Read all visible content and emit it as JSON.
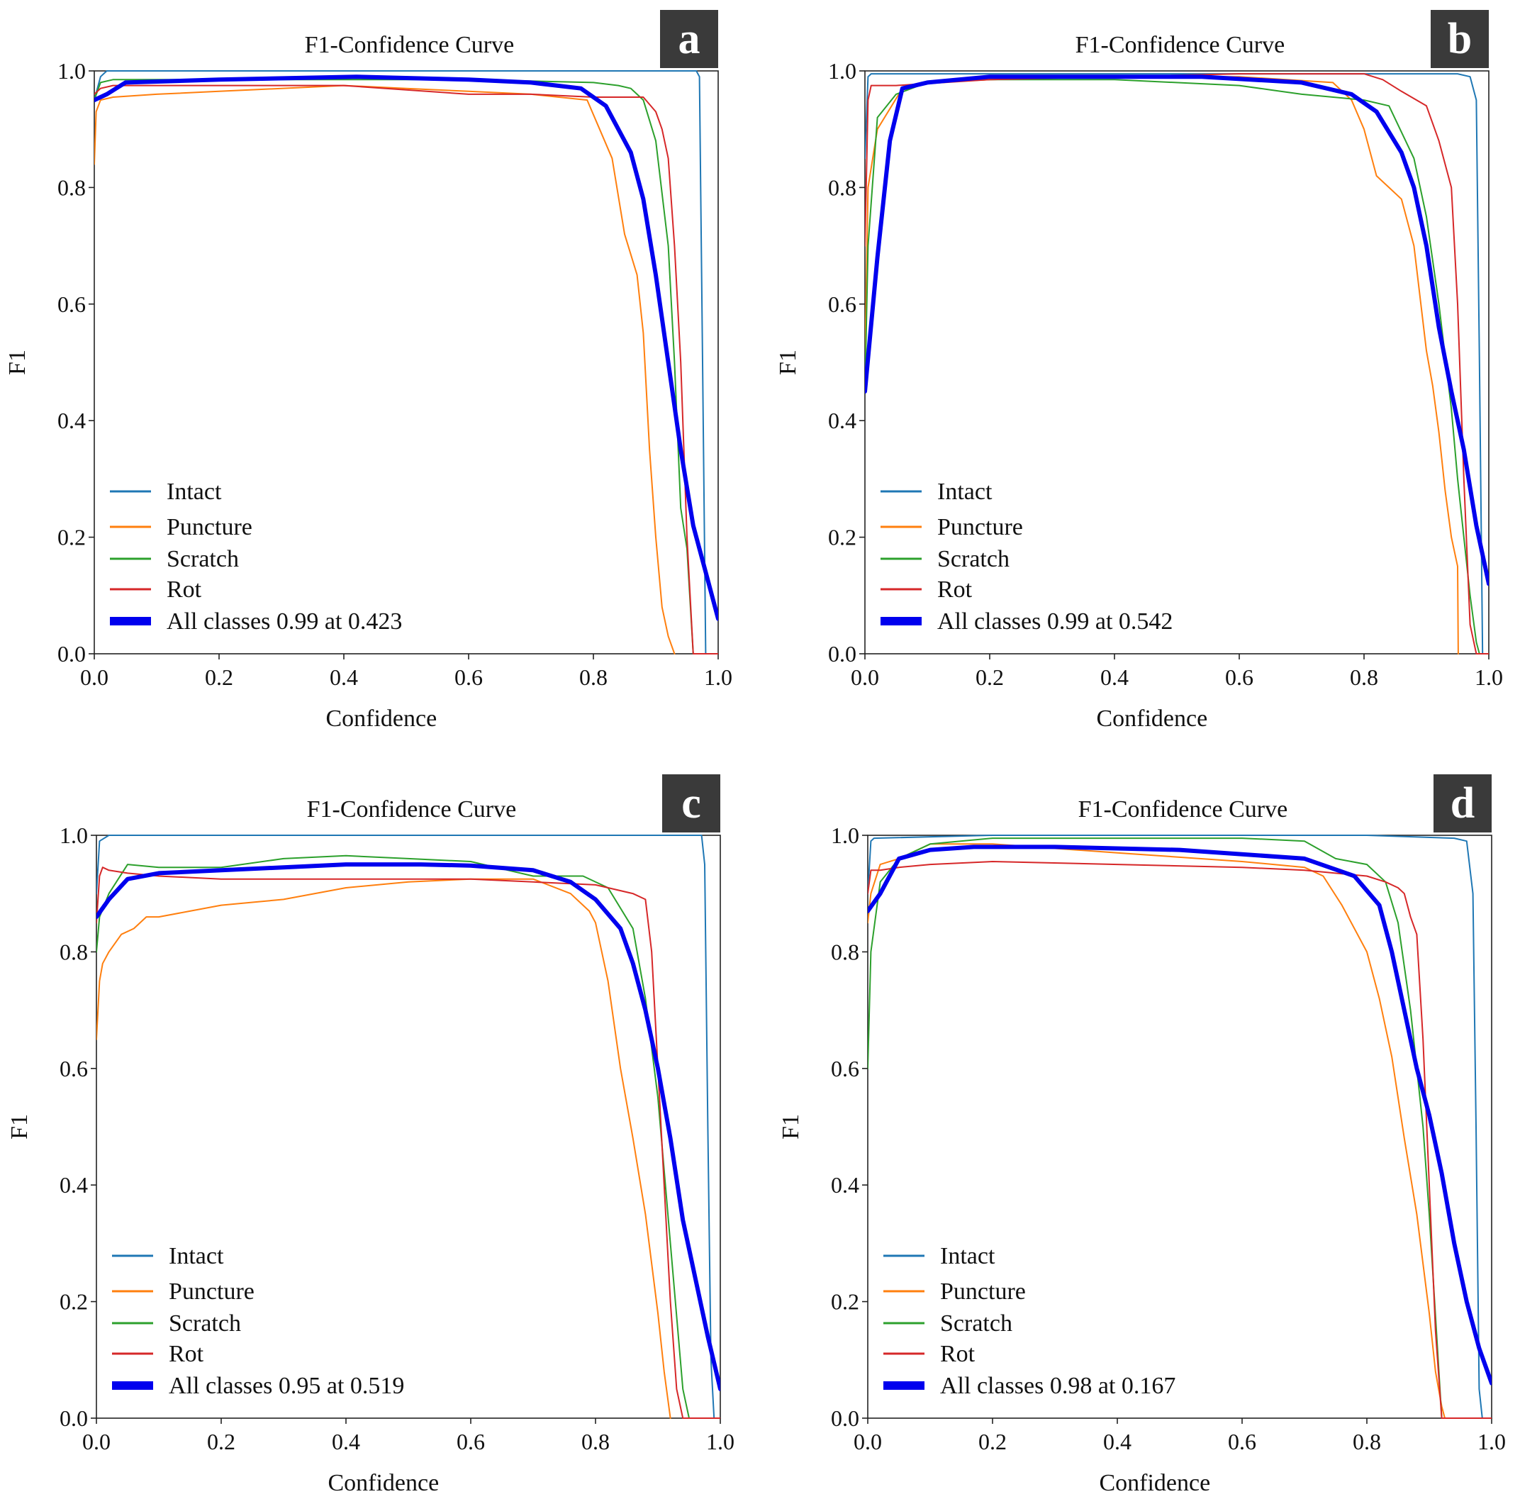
{
  "chart_data": [
    {
      "type": "line",
      "panel_label": "a",
      "title": "F1-Confidence Curve",
      "xlabel": "Confidence",
      "ylabel": "F1",
      "xlim": [
        0,
        1
      ],
      "ylim": [
        0,
        1
      ],
      "xticks": [
        "0.0",
        "0.2",
        "0.4",
        "0.6",
        "0.8",
        "1.0"
      ],
      "yticks": [
        "0.0",
        "0.2",
        "0.4",
        "0.6",
        "0.8",
        "1.0"
      ],
      "grid": false,
      "legend_position": "lower-left",
      "series": [
        {
          "name": "Intact",
          "color": "#1f77b4",
          "width": "thin",
          "x": [
            0,
            0.01,
            0.02,
            0.2,
            0.5,
            0.8,
            0.93,
            0.95,
            0.96,
            0.965,
            0.97,
            0.975,
            0.98,
            1.0
          ],
          "y": [
            0.95,
            0.99,
            1.0,
            1.0,
            1.0,
            1.0,
            1.0,
            1.0,
            1.0,
            1.0,
            0.99,
            0.5,
            0.0,
            0.0
          ]
        },
        {
          "name": "Puncture",
          "color": "#ff7f0e",
          "width": "thin",
          "x": [
            0,
            0.003,
            0.01,
            0.03,
            0.1,
            0.2,
            0.3,
            0.4,
            0.5,
            0.6,
            0.7,
            0.79,
            0.81,
            0.83,
            0.85,
            0.87,
            0.88,
            0.89,
            0.9,
            0.91,
            0.92,
            0.93
          ],
          "y": [
            0.84,
            0.93,
            0.95,
            0.955,
            0.96,
            0.965,
            0.97,
            0.975,
            0.97,
            0.965,
            0.96,
            0.95,
            0.9,
            0.85,
            0.72,
            0.65,
            0.55,
            0.35,
            0.2,
            0.08,
            0.03,
            0.0
          ]
        },
        {
          "name": "Scratch",
          "color": "#2ca02c",
          "width": "thin",
          "x": [
            0,
            0.01,
            0.03,
            0.1,
            0.2,
            0.4,
            0.6,
            0.8,
            0.84,
            0.86,
            0.88,
            0.9,
            0.92,
            0.93,
            0.94,
            0.95,
            0.96,
            1.0
          ],
          "y": [
            0.95,
            0.98,
            0.985,
            0.985,
            0.985,
            0.985,
            0.985,
            0.98,
            0.975,
            0.97,
            0.95,
            0.88,
            0.7,
            0.5,
            0.25,
            0.18,
            0.0,
            0.0
          ]
        },
        {
          "name": "Rot",
          "color": "#d62728",
          "width": "thin",
          "x": [
            0,
            0.01,
            0.03,
            0.1,
            0.2,
            0.4,
            0.6,
            0.7,
            0.8,
            0.88,
            0.9,
            0.91,
            0.92,
            0.93,
            0.94,
            0.95,
            0.96,
            1.0
          ],
          "y": [
            0.96,
            0.97,
            0.975,
            0.975,
            0.975,
            0.975,
            0.96,
            0.96,
            0.955,
            0.955,
            0.93,
            0.9,
            0.85,
            0.7,
            0.5,
            0.2,
            0.0,
            0.0
          ]
        },
        {
          "name": "All classes 0.99 at 0.423",
          "color": "#0000ee",
          "width": "thick",
          "x": [
            0,
            0.02,
            0.05,
            0.2,
            0.42,
            0.6,
            0.7,
            0.78,
            0.82,
            0.86,
            0.88,
            0.9,
            0.92,
            0.94,
            0.96,
            0.98,
            1.0
          ],
          "y": [
            0.95,
            0.96,
            0.98,
            0.985,
            0.99,
            0.985,
            0.98,
            0.97,
            0.94,
            0.86,
            0.78,
            0.65,
            0.5,
            0.35,
            0.22,
            0.14,
            0.06
          ]
        }
      ]
    },
    {
      "type": "line",
      "panel_label": "b",
      "title": "F1-Confidence Curve",
      "xlabel": "Confidence",
      "ylabel": "F1",
      "xlim": [
        0,
        1
      ],
      "ylim": [
        0,
        1
      ],
      "xticks": [
        "0.0",
        "0.2",
        "0.4",
        "0.6",
        "0.8",
        "1.0"
      ],
      "yticks": [
        "0.0",
        "0.2",
        "0.4",
        "0.6",
        "0.8",
        "1.0"
      ],
      "grid": false,
      "legend_position": "lower-left",
      "series": [
        {
          "name": "Intact",
          "color": "#1f77b4",
          "width": "thin",
          "x": [
            0,
            0.005,
            0.01,
            0.2,
            0.5,
            0.8,
            0.95,
            0.97,
            0.98,
            0.985,
            0.99,
            1.0
          ],
          "y": [
            0.85,
            0.99,
            0.995,
            0.995,
            0.995,
            0.995,
            0.995,
            0.99,
            0.95,
            0.5,
            0.0,
            0.0
          ]
        },
        {
          "name": "Puncture",
          "color": "#ff7f0e",
          "width": "thin",
          "x": [
            0,
            0.005,
            0.02,
            0.06,
            0.1,
            0.2,
            0.4,
            0.6,
            0.75,
            0.78,
            0.8,
            0.82,
            0.84,
            0.86,
            0.88,
            0.9,
            0.91,
            0.92,
            0.93,
            0.94,
            0.95,
            0.951
          ],
          "y": [
            0.5,
            0.8,
            0.9,
            0.97,
            0.98,
            0.985,
            0.99,
            0.99,
            0.98,
            0.95,
            0.9,
            0.82,
            0.8,
            0.78,
            0.7,
            0.52,
            0.46,
            0.38,
            0.28,
            0.2,
            0.15,
            0.0
          ]
        },
        {
          "name": "Scratch",
          "color": "#2ca02c",
          "width": "thin",
          "x": [
            0,
            0.005,
            0.02,
            0.05,
            0.1,
            0.2,
            0.4,
            0.6,
            0.7,
            0.8,
            0.84,
            0.88,
            0.9,
            0.92,
            0.94,
            0.95,
            0.96,
            0.97,
            0.98,
            0.985,
            1.0
          ],
          "y": [
            0.45,
            0.7,
            0.92,
            0.96,
            0.98,
            0.985,
            0.985,
            0.975,
            0.96,
            0.95,
            0.94,
            0.85,
            0.75,
            0.6,
            0.42,
            0.3,
            0.2,
            0.1,
            0.02,
            0.0,
            0.0
          ]
        },
        {
          "name": "Rot",
          "color": "#d62728",
          "width": "thin",
          "x": [
            0,
            0.005,
            0.01,
            0.05,
            0.2,
            0.4,
            0.6,
            0.8,
            0.83,
            0.86,
            0.9,
            0.92,
            0.94,
            0.95,
            0.96,
            0.97,
            0.98,
            1.0
          ],
          "y": [
            0.7,
            0.95,
            0.975,
            0.975,
            0.985,
            0.99,
            0.995,
            0.995,
            0.985,
            0.965,
            0.94,
            0.88,
            0.8,
            0.6,
            0.3,
            0.05,
            0.0,
            0.0
          ]
        },
        {
          "name": "All classes 0.99 at 0.542",
          "color": "#0000ee",
          "width": "thick",
          "x": [
            0,
            0.02,
            0.04,
            0.06,
            0.1,
            0.2,
            0.4,
            0.54,
            0.7,
            0.78,
            0.82,
            0.86,
            0.88,
            0.9,
            0.92,
            0.94,
            0.96,
            0.98,
            1.0
          ],
          "y": [
            0.45,
            0.68,
            0.88,
            0.97,
            0.98,
            0.99,
            0.99,
            0.99,
            0.98,
            0.96,
            0.93,
            0.86,
            0.8,
            0.7,
            0.56,
            0.45,
            0.35,
            0.22,
            0.12
          ]
        }
      ]
    },
    {
      "type": "line",
      "panel_label": "c",
      "title": "F1-Confidence Curve",
      "xlabel": "Confidence",
      "ylabel": "F1",
      "xlim": [
        0,
        1
      ],
      "ylim": [
        0,
        1
      ],
      "xticks": [
        "0.0",
        "0.2",
        "0.4",
        "0.6",
        "0.8",
        "1.0"
      ],
      "yticks": [
        "0.0",
        "0.2",
        "0.4",
        "0.6",
        "0.8",
        "1.0"
      ],
      "grid": false,
      "legend_position": "lower-left",
      "series": [
        {
          "name": "Intact",
          "color": "#1f77b4",
          "width": "thin",
          "x": [
            0,
            0.005,
            0.02,
            0.2,
            0.5,
            0.8,
            0.95,
            0.97,
            0.975,
            0.98,
            0.985,
            0.99,
            1.0
          ],
          "y": [
            0.9,
            0.99,
            1.0,
            1.0,
            1.0,
            1.0,
            1.0,
            1.0,
            0.95,
            0.5,
            0.1,
            0.0,
            0.0
          ]
        },
        {
          "name": "Puncture",
          "color": "#ff7f0e",
          "width": "thin",
          "x": [
            0,
            0.005,
            0.01,
            0.02,
            0.04,
            0.06,
            0.08,
            0.1,
            0.15,
            0.2,
            0.25,
            0.3,
            0.4,
            0.5,
            0.6,
            0.7,
            0.76,
            0.79,
            0.8,
            0.81,
            0.82,
            0.84,
            0.86,
            0.88,
            0.9,
            0.91,
            0.92
          ],
          "y": [
            0.65,
            0.75,
            0.78,
            0.8,
            0.83,
            0.84,
            0.86,
            0.86,
            0.87,
            0.88,
            0.885,
            0.89,
            0.91,
            0.92,
            0.925,
            0.925,
            0.9,
            0.87,
            0.85,
            0.8,
            0.75,
            0.6,
            0.48,
            0.35,
            0.18,
            0.08,
            0.0
          ]
        },
        {
          "name": "Scratch",
          "color": "#2ca02c",
          "width": "thin",
          "x": [
            0,
            0.005,
            0.02,
            0.05,
            0.1,
            0.2,
            0.3,
            0.4,
            0.5,
            0.6,
            0.7,
            0.78,
            0.82,
            0.86,
            0.88,
            0.9,
            0.92,
            0.94,
            0.95,
            1.0
          ],
          "y": [
            0.8,
            0.86,
            0.9,
            0.95,
            0.945,
            0.945,
            0.96,
            0.965,
            0.96,
            0.955,
            0.93,
            0.93,
            0.91,
            0.84,
            0.72,
            0.55,
            0.3,
            0.05,
            0.0,
            0.0
          ]
        },
        {
          "name": "Rot",
          "color": "#d62728",
          "width": "thin",
          "x": [
            0,
            0.005,
            0.01,
            0.02,
            0.05,
            0.1,
            0.2,
            0.4,
            0.6,
            0.7,
            0.8,
            0.86,
            0.88,
            0.89,
            0.9,
            0.91,
            0.92,
            0.93,
            0.94,
            1.0
          ],
          "y": [
            0.85,
            0.93,
            0.945,
            0.94,
            0.935,
            0.93,
            0.925,
            0.925,
            0.925,
            0.92,
            0.915,
            0.9,
            0.89,
            0.8,
            0.6,
            0.4,
            0.2,
            0.05,
            0.0,
            0.0
          ]
        },
        {
          "name": "All classes 0.95 at 0.519",
          "color": "#0000ee",
          "width": "thick",
          "x": [
            0,
            0.02,
            0.05,
            0.1,
            0.2,
            0.3,
            0.4,
            0.52,
            0.6,
            0.7,
            0.76,
            0.8,
            0.84,
            0.86,
            0.88,
            0.9,
            0.92,
            0.94,
            0.96,
            0.98,
            1.0
          ],
          "y": [
            0.86,
            0.89,
            0.925,
            0.935,
            0.94,
            0.945,
            0.95,
            0.95,
            0.948,
            0.94,
            0.92,
            0.89,
            0.84,
            0.78,
            0.7,
            0.6,
            0.48,
            0.34,
            0.24,
            0.14,
            0.05
          ]
        }
      ]
    },
    {
      "type": "line",
      "panel_label": "d",
      "title": "F1-Confidence Curve",
      "xlabel": "Confidence",
      "ylabel": "F1",
      "xlim": [
        0,
        1
      ],
      "ylim": [
        0,
        1
      ],
      "xticks": [
        "0.0",
        "0.2",
        "0.4",
        "0.6",
        "0.8",
        "1.0"
      ],
      "yticks": [
        "0.0",
        "0.2",
        "0.4",
        "0.6",
        "0.8",
        "1.0"
      ],
      "grid": false,
      "legend_position": "lower-left",
      "series": [
        {
          "name": "Intact",
          "color": "#1f77b4",
          "width": "thin",
          "x": [
            0,
            0.005,
            0.01,
            0.2,
            0.5,
            0.8,
            0.94,
            0.96,
            0.97,
            0.975,
            0.98,
            0.985,
            1.0
          ],
          "y": [
            0.9,
            0.99,
            0.995,
            1.0,
            1.0,
            1.0,
            0.995,
            0.99,
            0.9,
            0.5,
            0.05,
            0.0,
            0.0
          ]
        },
        {
          "name": "Puncture",
          "color": "#ff7f0e",
          "width": "thin",
          "x": [
            0,
            0.005,
            0.02,
            0.05,
            0.1,
            0.2,
            0.4,
            0.6,
            0.7,
            0.73,
            0.76,
            0.8,
            0.82,
            0.84,
            0.86,
            0.88,
            0.9,
            0.91,
            0.92,
            0.925
          ],
          "y": [
            0.85,
            0.9,
            0.95,
            0.96,
            0.985,
            0.985,
            0.97,
            0.955,
            0.945,
            0.93,
            0.88,
            0.8,
            0.72,
            0.62,
            0.48,
            0.35,
            0.18,
            0.08,
            0.02,
            0.0
          ]
        },
        {
          "name": "Scratch",
          "color": "#2ca02c",
          "width": "thin",
          "x": [
            0,
            0.005,
            0.02,
            0.05,
            0.1,
            0.2,
            0.4,
            0.6,
            0.7,
            0.75,
            0.8,
            0.83,
            0.85,
            0.87,
            0.89,
            0.9,
            0.92,
            1.0
          ],
          "y": [
            0.6,
            0.8,
            0.92,
            0.96,
            0.985,
            0.995,
            0.995,
            0.995,
            0.99,
            0.96,
            0.95,
            0.92,
            0.85,
            0.7,
            0.5,
            0.35,
            0.0,
            0.0
          ]
        },
        {
          "name": "Rot",
          "color": "#d62728",
          "width": "thin",
          "x": [
            0,
            0.005,
            0.02,
            0.05,
            0.1,
            0.2,
            0.4,
            0.6,
            0.7,
            0.8,
            0.83,
            0.85,
            0.86,
            0.87,
            0.88,
            0.89,
            0.9,
            0.91,
            0.92,
            1.0
          ],
          "y": [
            0.9,
            0.94,
            0.94,
            0.945,
            0.95,
            0.955,
            0.95,
            0.945,
            0.94,
            0.93,
            0.92,
            0.91,
            0.9,
            0.86,
            0.83,
            0.65,
            0.4,
            0.15,
            0.0,
            0.0
          ]
        },
        {
          "name": "All classes 0.98 at 0.167",
          "color": "#0000ee",
          "width": "thick",
          "x": [
            0,
            0.02,
            0.05,
            0.1,
            0.17,
            0.3,
            0.5,
            0.7,
            0.78,
            0.82,
            0.84,
            0.86,
            0.88,
            0.9,
            0.92,
            0.94,
            0.96,
            0.98,
            1.0
          ],
          "y": [
            0.87,
            0.9,
            0.96,
            0.975,
            0.98,
            0.98,
            0.975,
            0.96,
            0.93,
            0.88,
            0.8,
            0.7,
            0.6,
            0.52,
            0.42,
            0.3,
            0.2,
            0.12,
            0.06
          ]
        }
      ]
    }
  ]
}
